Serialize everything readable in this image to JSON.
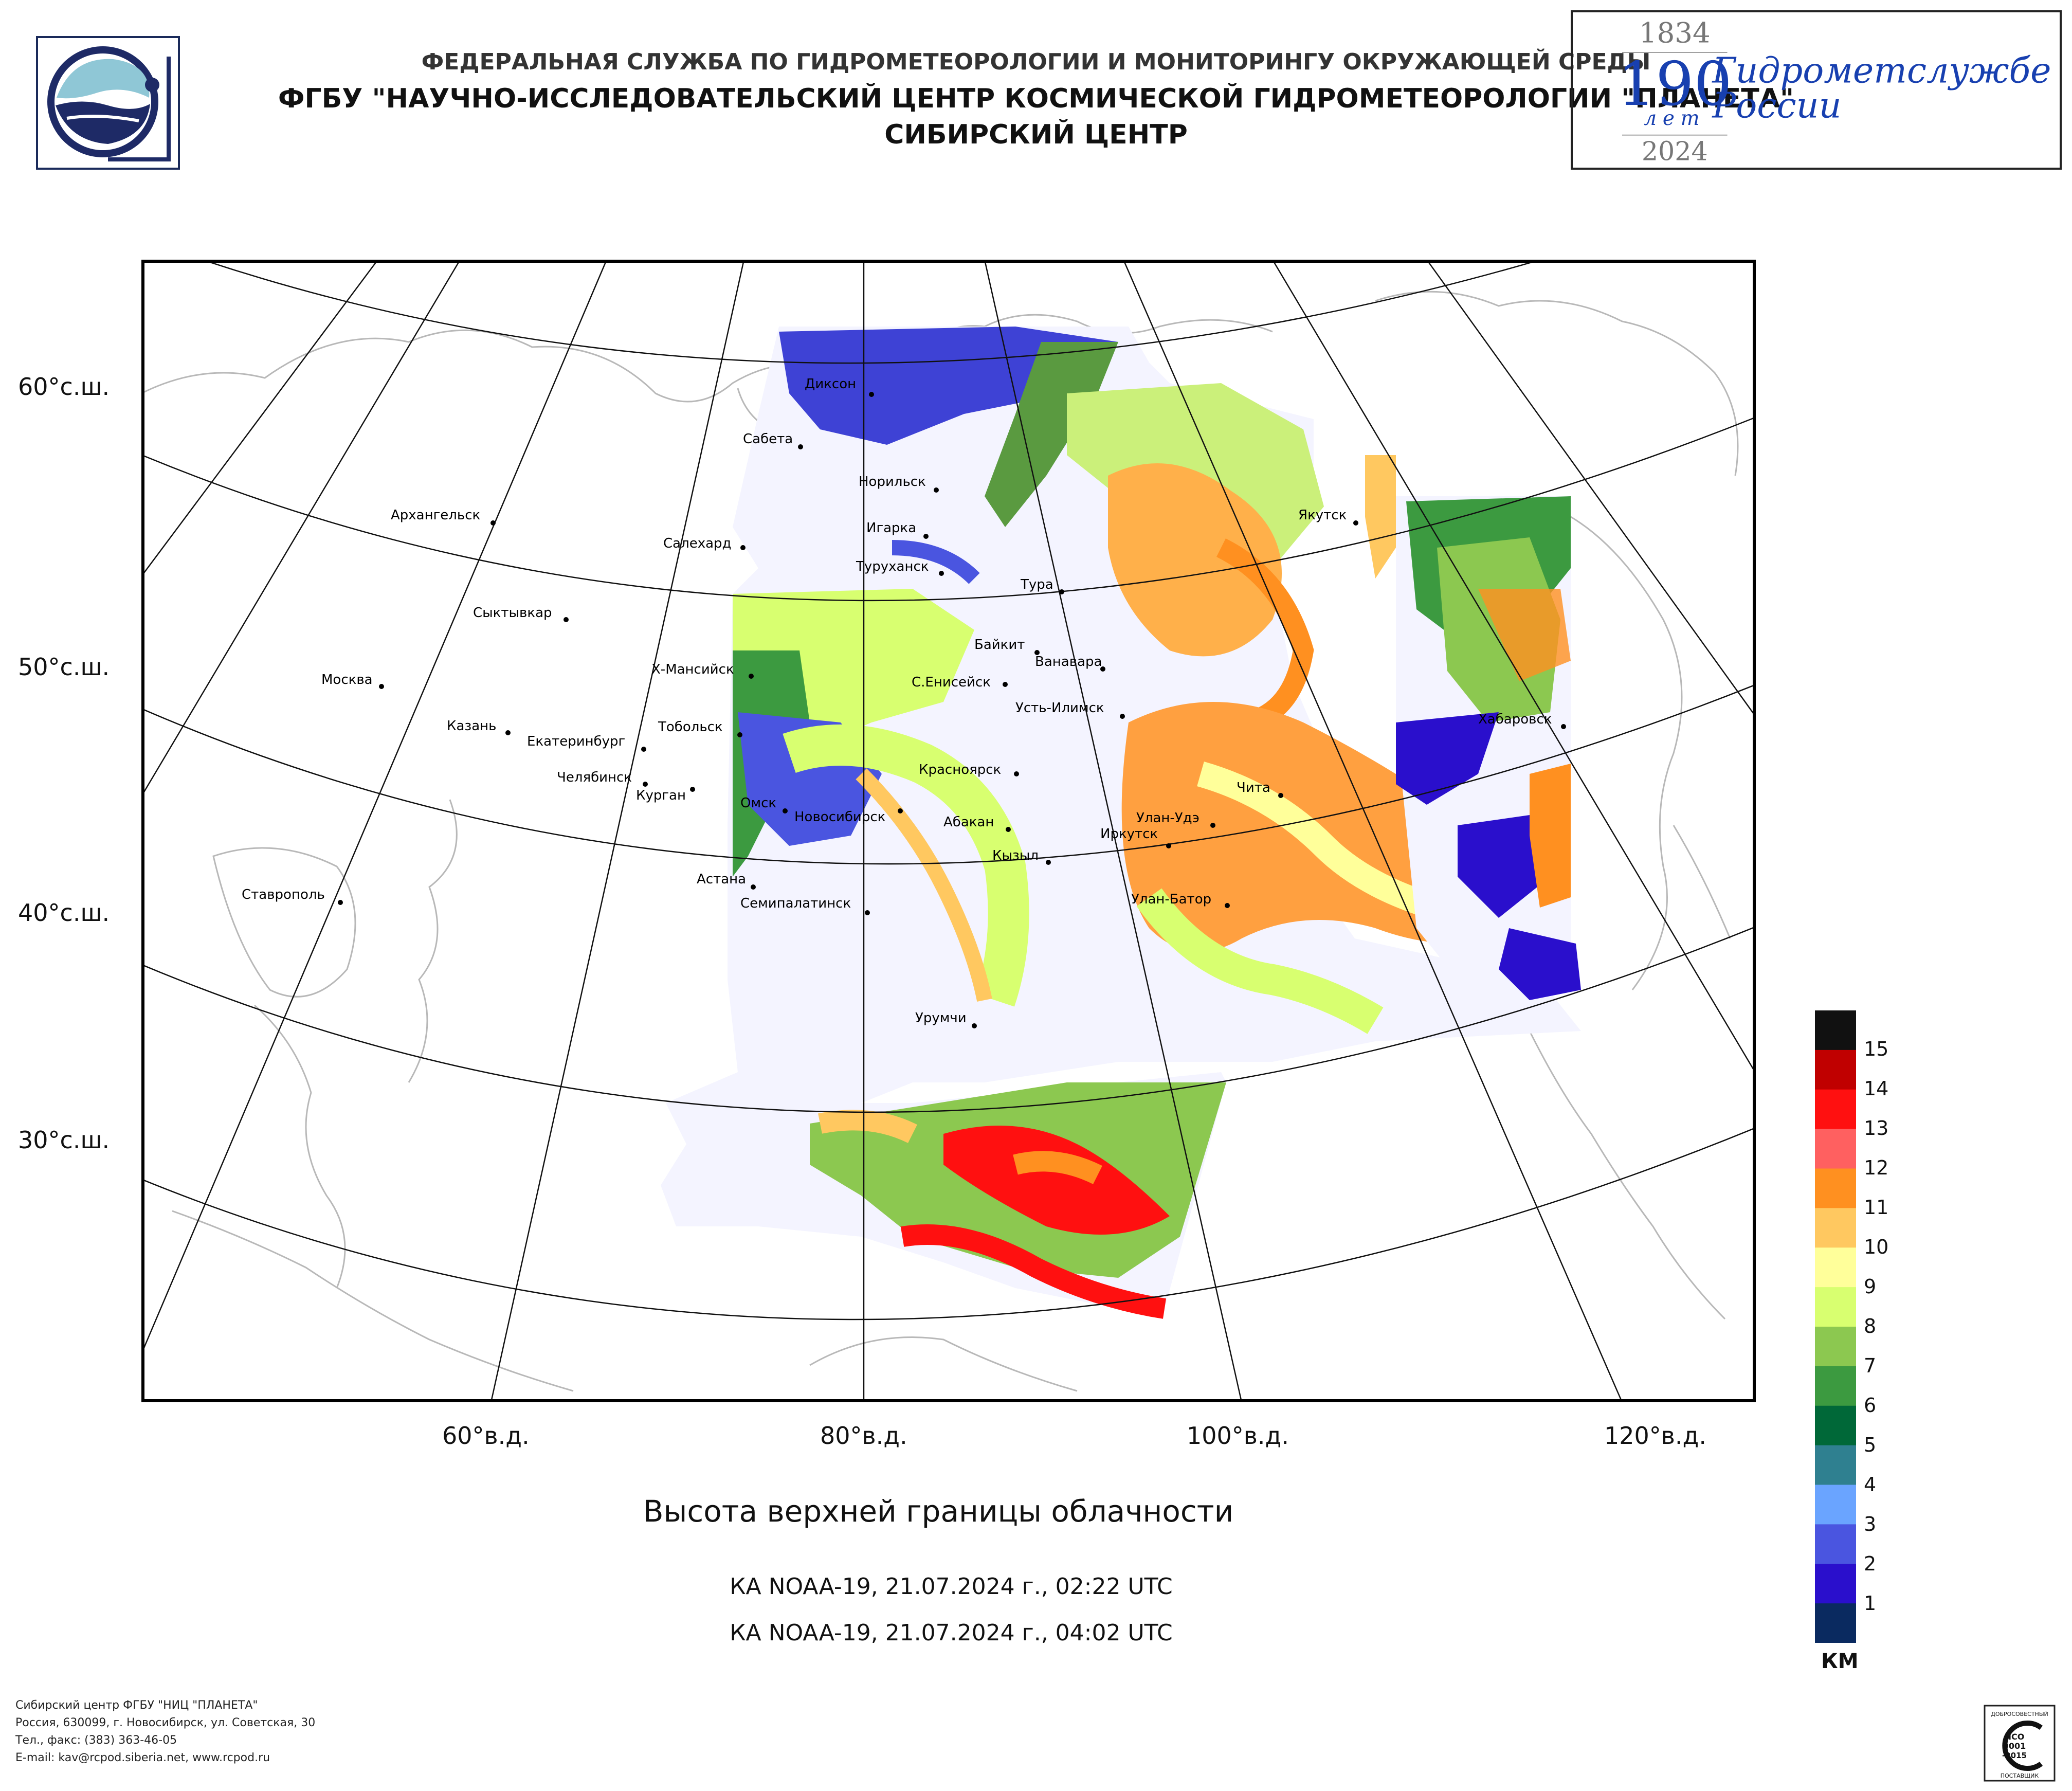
{
  "header": {
    "line1": "ФЕДЕРАЛЬНАЯ СЛУЖБА ПО ГИДРОМЕТЕОРОЛОГИИ И МОНИТОРИНГУ ОКРУЖАЮЩЕЙ СРЕДЫ",
    "line2": "ФГБУ \"НАУЧНО-ИССЛЕДОВАТЕЛЬСКИЙ ЦЕНТР КОСМИЧЕСКОЙ ГИДРОМЕТЕОРОЛОГИИ \"ПЛАНЕТА\"",
    "line3": "СИБИРСКИЙ ЦЕНТР"
  },
  "anniversary": {
    "year_start": "1834",
    "number": "190",
    "years_word": "лет",
    "year_end": "2024",
    "text_line1": "Гидрометслужбе",
    "text_line2": "России"
  },
  "map": {
    "lat_labels": [
      "60°с.ш.",
      "50°с.ш.",
      "40°с.ш.",
      "30°с.ш."
    ],
    "lon_labels": [
      "60°в.д.",
      "80°в.д.",
      "100°в.д.",
      "120°в.д."
    ],
    "cities": [
      "Диксон",
      "Сабета",
      "Норильск",
      "Игарка",
      "Салехард",
      "Туруханск",
      "Архангельск",
      "Якутск",
      "Тура",
      "Сыктывкар",
      "Байкит",
      "Ванавара",
      "Х-Мансийск",
      "С.Енисейск",
      "Москва",
      "Усть-Илимск",
      "Хабаровск",
      "Казань",
      "Тобольск",
      "Екатеринбург",
      "Челябинск",
      "Курган",
      "Красноярск",
      "Чита",
      "Омск",
      "Новосибирск",
      "Абакан",
      "Улан-Удэ",
      "Иркутск",
      "Кызыл",
      "Астана",
      "Семипалатинск",
      "Улан-Батор",
      "Ставрополь",
      "Урумчи"
    ]
  },
  "title": "Высота верхней границы облачности",
  "satellite_passes": [
    "КА NOAA-19, 21.07.2024 г., 02:22 UTC",
    "КА NOAA-19, 21.07.2024 г., 04:02 UTC"
  ],
  "legend": {
    "unit": "КМ",
    "levels": [
      "15",
      "14",
      "13",
      "12",
      "11",
      "10",
      "9",
      "8",
      "7",
      "6",
      "5",
      "4",
      "3",
      "2",
      "1"
    ],
    "colors": [
      "#111111",
      "#c00000",
      "#ff1010",
      "#ff6060",
      "#ff9020",
      "#ffc860",
      "#ffff9a",
      "#d8ff70",
      "#8cc850",
      "#3c9a40",
      "#006838",
      "#2f8090",
      "#6aa4ff",
      "#4a55e0",
      "#2a0fcc",
      "#0a2a60"
    ]
  },
  "footer": {
    "line1": "Сибирский центр ФГБУ \"НИЦ \"ПЛАНЕТА\"",
    "line2": "Россия, 630099, г. Новосибирск, ул. Советская, 30",
    "line3": "Тел., факс: (383) 363-46-05",
    "line4": "E-mail: kav@rcpod.siberia.net, www.rcpod.ru"
  },
  "certificate": {
    "top_text": "ДОБРОСОВЕСТНЫЙ",
    "iso_line1": "ИСО",
    "iso_line2": "9001",
    "iso_line3": "-2015",
    "bottom_text": "ПОСТАВЩИК"
  }
}
